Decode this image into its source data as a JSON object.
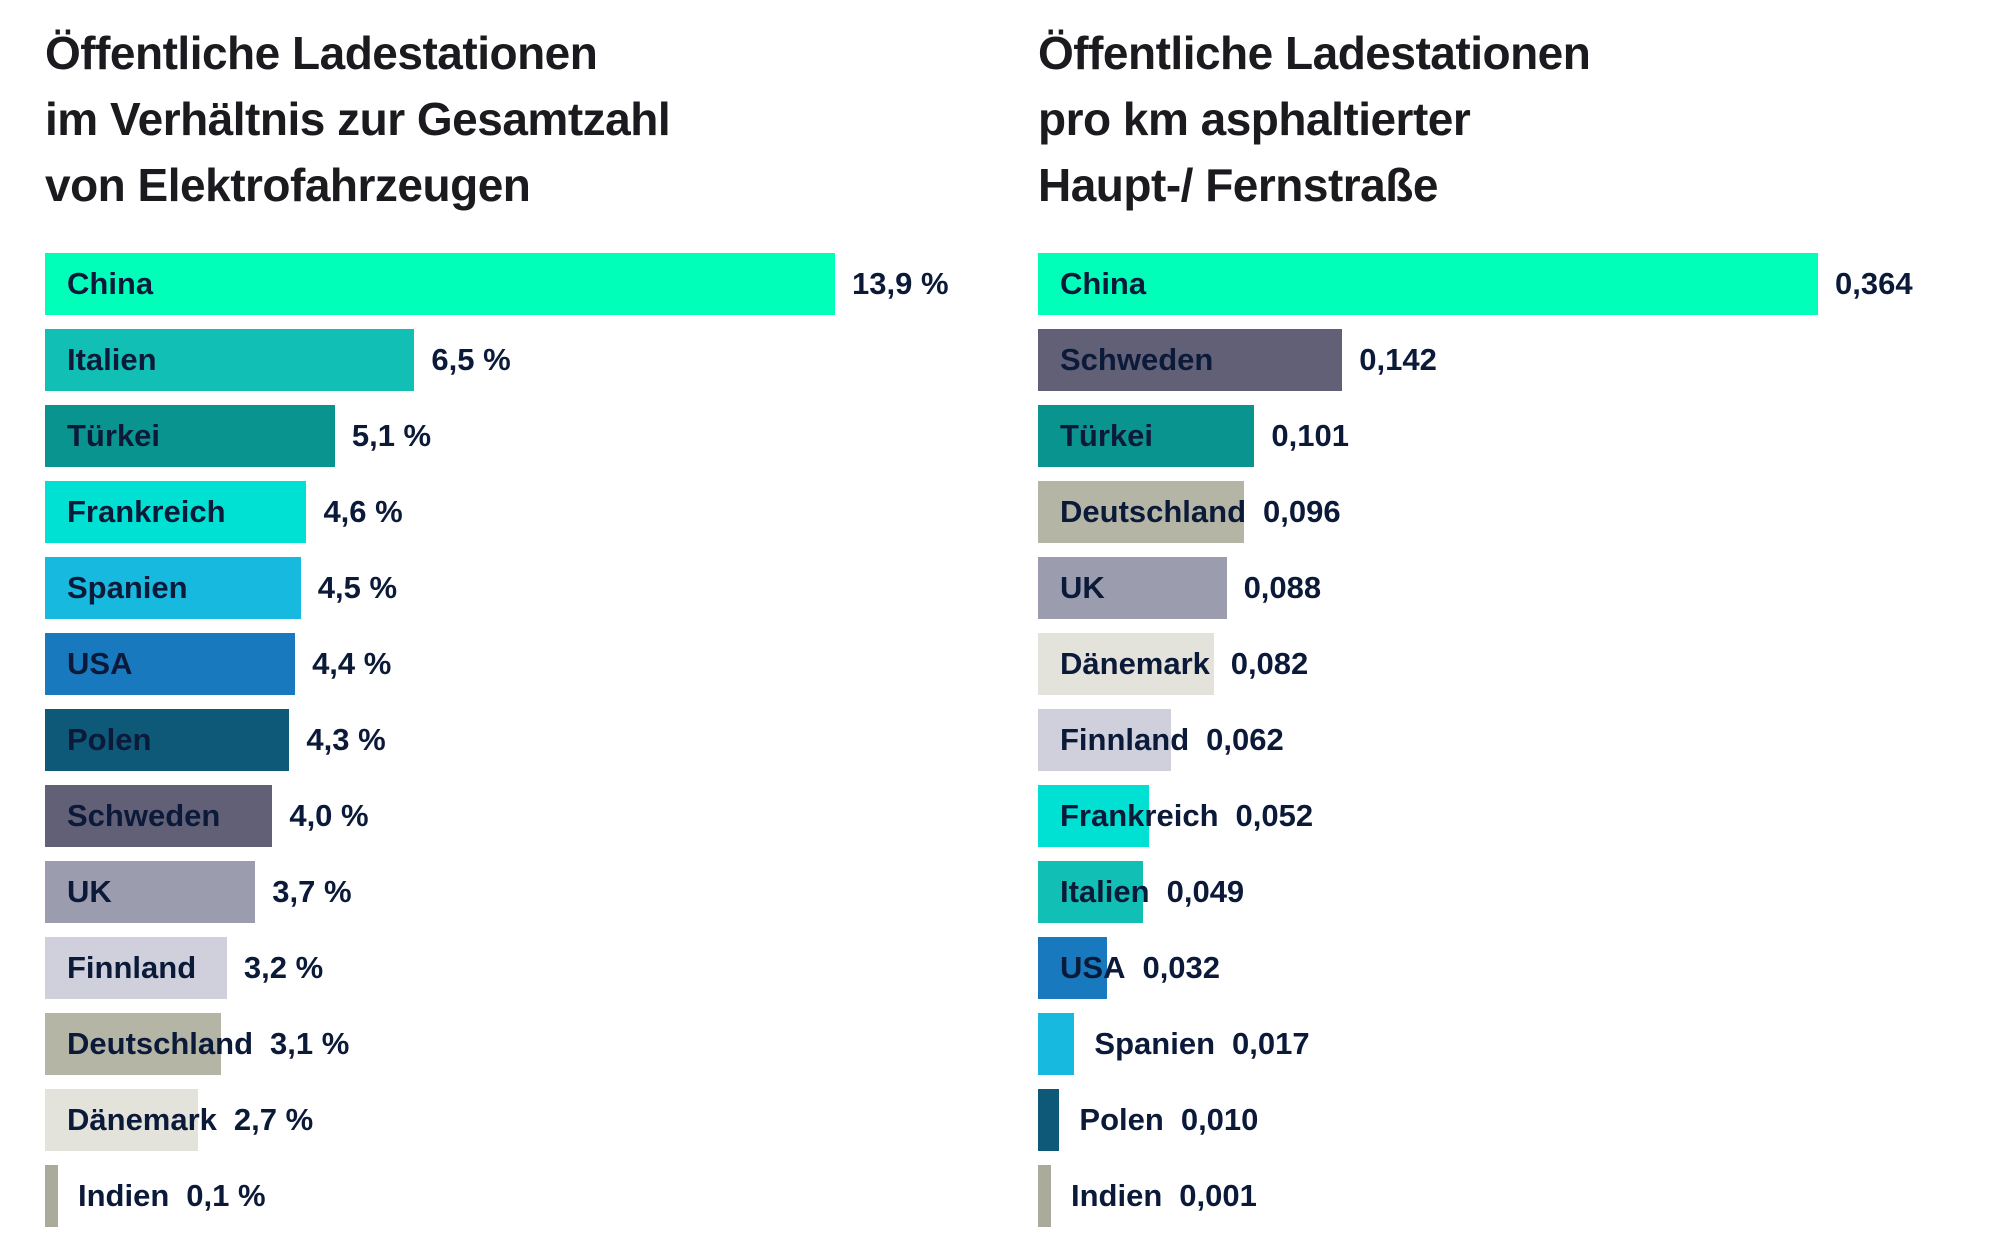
{
  "chart_data": [
    {
      "type": "bar",
      "orientation": "horizontal",
      "title": "Öffentliche Ladestationen im Verhältnis zur Gesamtzahl von Elektrofahrzeugen",
      "title_display": "Öffentliche Ladestationen\nim Verhältnis zur Gesamtzahl\nvon Elektrofahrzeugen",
      "xlabel": "",
      "ylabel": "",
      "xmax": 13.9,
      "grid": false,
      "legend": "none",
      "value_format": "percent-comma",
      "categories": [
        "China",
        "Italien",
        "Türkei",
        "Frankreich",
        "Spanien",
        "USA",
        "Polen",
        "Schweden",
        "UK",
        "Finnland",
        "Deutschland",
        "Dänemark",
        "Indien"
      ],
      "values": [
        13.9,
        6.5,
        5.1,
        4.6,
        4.5,
        4.4,
        4.3,
        4.0,
        3.7,
        3.2,
        3.1,
        2.7,
        0.1
      ],
      "value_labels": [
        "13,9 %",
        "6,5 %",
        "5,1 %",
        "4,6 %",
        "4,5 %",
        "4,4 %",
        "4,3 %",
        "4,0 %",
        "3,7 %",
        "3,2 %",
        "3,1 %",
        "2,7 %",
        "0,1 %"
      ],
      "colors": [
        "#00ffb9",
        "#11bfb4",
        "#0a9490",
        "#00e1d4",
        "#17b9de",
        "#1879be",
        "#0e5878",
        "#616077",
        "#9c9caf",
        "#d0d0dc",
        "#b5b5a6",
        "#e3e3db",
        "#abab9b"
      ],
      "label_inside": [
        true,
        true,
        true,
        true,
        true,
        true,
        true,
        true,
        true,
        true,
        true,
        true,
        false
      ]
    },
    {
      "type": "bar",
      "orientation": "horizontal",
      "title": "Öffentliche Ladestationen pro km asphaltierter Haupt-/ Fernstraße",
      "title_display": "Öffentliche Ladestationen\npro km asphaltierter\nHaupt-/ Fernstraße",
      "xlabel": "",
      "ylabel": "",
      "xmax": 0.364,
      "grid": false,
      "legend": "none",
      "value_format": "decimal-comma",
      "categories": [
        "China",
        "Schweden",
        "Türkei",
        "Deutschland",
        "UK",
        "Dänemark",
        "Finnland",
        "Frankreich",
        "Italien",
        "USA",
        "Spanien",
        "Polen",
        "Indien"
      ],
      "values": [
        0.364,
        0.142,
        0.101,
        0.096,
        0.088,
        0.082,
        0.062,
        0.052,
        0.049,
        0.032,
        0.017,
        0.01,
        0.001
      ],
      "value_labels": [
        "0,364",
        "0,142",
        "0,101",
        "0,096",
        "0,088",
        "0,082",
        "0,062",
        "0,052",
        "0,049",
        "0,032",
        "0,017",
        "0,010",
        "0,001"
      ],
      "colors": [
        "#00ffb9",
        "#616077",
        "#0a9490",
        "#b5b5a6",
        "#9c9caf",
        "#e3e3db",
        "#d0d0dc",
        "#00e1d4",
        "#11bfb4",
        "#1879be",
        "#17b9de",
        "#0e5878",
        "#abab9b"
      ],
      "label_inside": [
        true,
        true,
        true,
        true,
        true,
        true,
        true,
        true,
        true,
        true,
        false,
        false,
        false
      ]
    }
  ],
  "text_color": "#0c1a3a",
  "title_color": "#1a1a1f",
  "background_color": "#ffffff"
}
